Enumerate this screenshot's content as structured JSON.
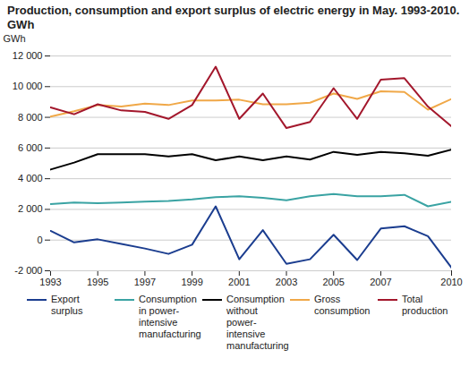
{
  "chart_data": {
    "type": "line",
    "title": "Production, consumption and export surplus of electric energy in May. 1993-2010. GWh",
    "y_label": "GWh",
    "x": [
      1993,
      1994,
      1995,
      1996,
      1997,
      1998,
      1999,
      2000,
      2001,
      2002,
      2003,
      2004,
      2005,
      2006,
      2007,
      2008,
      2009,
      2010
    ],
    "xlim": [
      1993,
      2010
    ],
    "xticks": [
      1993,
      1995,
      1997,
      1999,
      2001,
      2003,
      2005,
      2007,
      2010
    ],
    "ylim": [
      -2000,
      12000
    ],
    "yticks": [
      {
        "value": -2000,
        "label": "-2 000"
      },
      0,
      {
        "value": 2000,
        "label": "2 000"
      },
      {
        "value": 4000,
        "label": "4 000"
      },
      {
        "value": 6000,
        "label": "6 000"
      },
      {
        "value": 8000,
        "label": "8 000"
      },
      {
        "value": 10000,
        "label": "10 000"
      },
      {
        "value": 12000,
        "label": "12 000"
      }
    ],
    "grid": true,
    "legend": "bottom",
    "series": [
      {
        "name": "Export surplus",
        "color": "#1b3d8f",
        "values": [
          600,
          -150,
          50,
          -250,
          -550,
          -900,
          -300,
          2200,
          -1250,
          650,
          -1550,
          -1250,
          350,
          -1300,
          750,
          900,
          250,
          -1800
        ]
      },
      {
        "name": "Consumption in power-intensive manufacturing",
        "color": "#3aa3a3",
        "values": [
          2350,
          2450,
          2400,
          2450,
          2500,
          2550,
          2650,
          2800,
          2850,
          2750,
          2600,
          2850,
          3000,
          2850,
          2850,
          2950,
          2200,
          2500
        ]
      },
      {
        "name": "Consumption without power-intensive manufacturing",
        "color": "#000000",
        "values": [
          4600,
          5050,
          5600,
          5600,
          5600,
          5450,
          5600,
          5200,
          5450,
          5200,
          5450,
          5250,
          5750,
          5550,
          5750,
          5650,
          5500,
          5900
        ]
      },
      {
        "name": "Gross consumption",
        "color": "#f0a848",
        "values": [
          8050,
          8400,
          8800,
          8700,
          8900,
          8800,
          9100,
          9100,
          9150,
          8850,
          8850,
          8950,
          9550,
          9200,
          9700,
          9650,
          8500,
          9200
        ]
      },
      {
        "name": "Total production",
        "color": "#a3172c",
        "values": [
          8650,
          8200,
          8850,
          8450,
          8350,
          7900,
          8800,
          11300,
          7900,
          9550,
          7300,
          7700,
          9900,
          7900,
          10450,
          10550,
          8700,
          7400
        ]
      }
    ]
  }
}
